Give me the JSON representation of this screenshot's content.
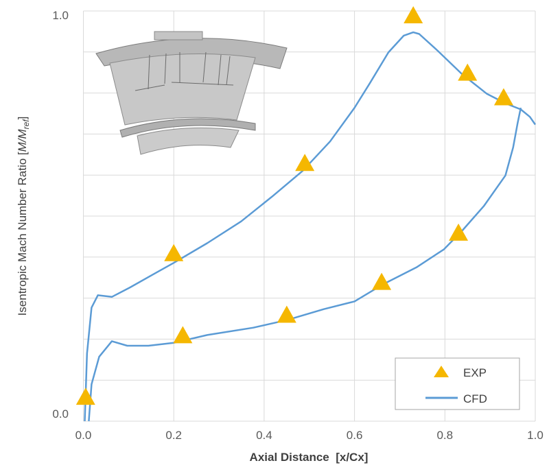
{
  "chart_data": {
    "type": "scatter+line",
    "xlabel": "Axial Distance  [x/Cx]",
    "ylabel": {
      "prefix": "Isentropic Mach Number Ratio [",
      "main": "M/M",
      "sub": "ref",
      "suffix": "]"
    },
    "xlim": [
      0,
      1
    ],
    "ylim": [
      0,
      1
    ],
    "xticks": [
      "0.0",
      "0.2",
      "0.4",
      "0.6",
      "0.8",
      "1.0"
    ],
    "yticks": [
      "0.0",
      "1.0"
    ],
    "grid": {
      "x_step": 0.2,
      "y_step": 0.1
    },
    "legend_position": "bottom-right",
    "series": [
      {
        "name": "EXP",
        "kind": "scatter",
        "marker": "triangle",
        "color": "#F5B700",
        "points": [
          [
            0.005,
            0.05
          ],
          [
            0.2,
            0.4
          ],
          [
            0.22,
            0.2
          ],
          [
            0.45,
            0.25
          ],
          [
            0.49,
            0.62
          ],
          [
            0.66,
            0.33
          ],
          [
            0.73,
            0.98
          ],
          [
            0.83,
            0.45
          ],
          [
            0.85,
            0.84
          ],
          [
            0.93,
            0.78
          ]
        ]
      },
      {
        "name": "CFD",
        "kind": "line",
        "color": "#5B9BD5",
        "suction_side": [
          [
            0.003,
            0.0
          ],
          [
            0.008,
            0.165
          ],
          [
            0.018,
            0.277
          ],
          [
            0.032,
            0.307
          ],
          [
            0.063,
            0.303
          ],
          [
            0.103,
            0.326
          ],
          [
            0.158,
            0.36
          ],
          [
            0.2,
            0.386
          ],
          [
            0.274,
            0.434
          ],
          [
            0.349,
            0.487
          ],
          [
            0.417,
            0.547
          ],
          [
            0.485,
            0.61
          ],
          [
            0.546,
            0.682
          ],
          [
            0.6,
            0.764
          ],
          [
            0.634,
            0.824
          ],
          [
            0.675,
            0.899
          ],
          [
            0.709,
            0.94
          ],
          [
            0.73,
            0.948
          ],
          [
            0.743,
            0.944
          ],
          [
            0.784,
            0.903
          ],
          [
            0.838,
            0.846
          ],
          [
            0.893,
            0.798
          ],
          [
            0.934,
            0.775
          ],
          [
            0.968,
            0.76
          ],
          [
            0.988,
            0.742
          ],
          [
            1.0,
            0.723
          ]
        ],
        "pressure_side": [
          [
            0.012,
            0.0
          ],
          [
            0.018,
            0.09
          ],
          [
            0.035,
            0.157
          ],
          [
            0.063,
            0.195
          ],
          [
            0.097,
            0.184
          ],
          [
            0.144,
            0.184
          ],
          [
            0.2,
            0.191
          ],
          [
            0.274,
            0.21
          ],
          [
            0.376,
            0.228
          ],
          [
            0.452,
            0.247
          ],
          [
            0.532,
            0.273
          ],
          [
            0.6,
            0.292
          ],
          [
            0.662,
            0.333
          ],
          [
            0.737,
            0.375
          ],
          [
            0.798,
            0.419
          ],
          [
            0.838,
            0.464
          ],
          [
            0.886,
            0.524
          ],
          [
            0.934,
            0.599
          ],
          [
            0.951,
            0.667
          ],
          [
            0.961,
            0.727
          ],
          [
            0.968,
            0.764
          ]
        ]
      }
    ]
  },
  "inset": {
    "icon": "turbine-blade-cascade-image"
  }
}
